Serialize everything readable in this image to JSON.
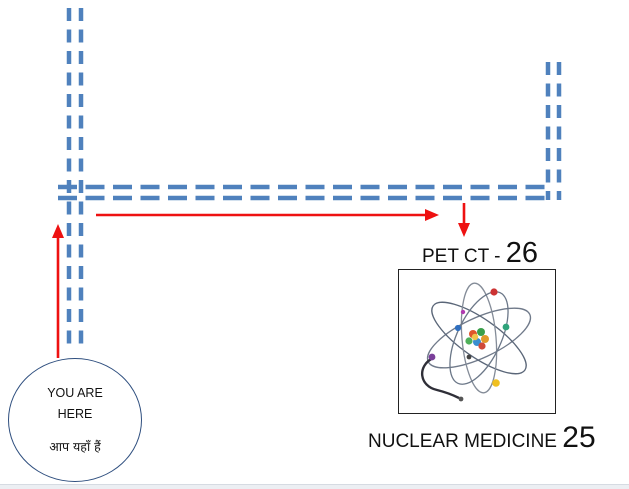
{
  "destination": {
    "name": "PET CT -",
    "number": "26"
  },
  "department": {
    "name": "NUCLEAR MEDICINE",
    "number": "25"
  },
  "you_are_here": {
    "english": "YOU ARE\nHERE",
    "hindi": "आप यहाँ हैं"
  },
  "colors": {
    "corridor": "#4f81bd",
    "route_arrow": "#ee1111"
  },
  "icons": {
    "department_image": "atom-icon"
  }
}
